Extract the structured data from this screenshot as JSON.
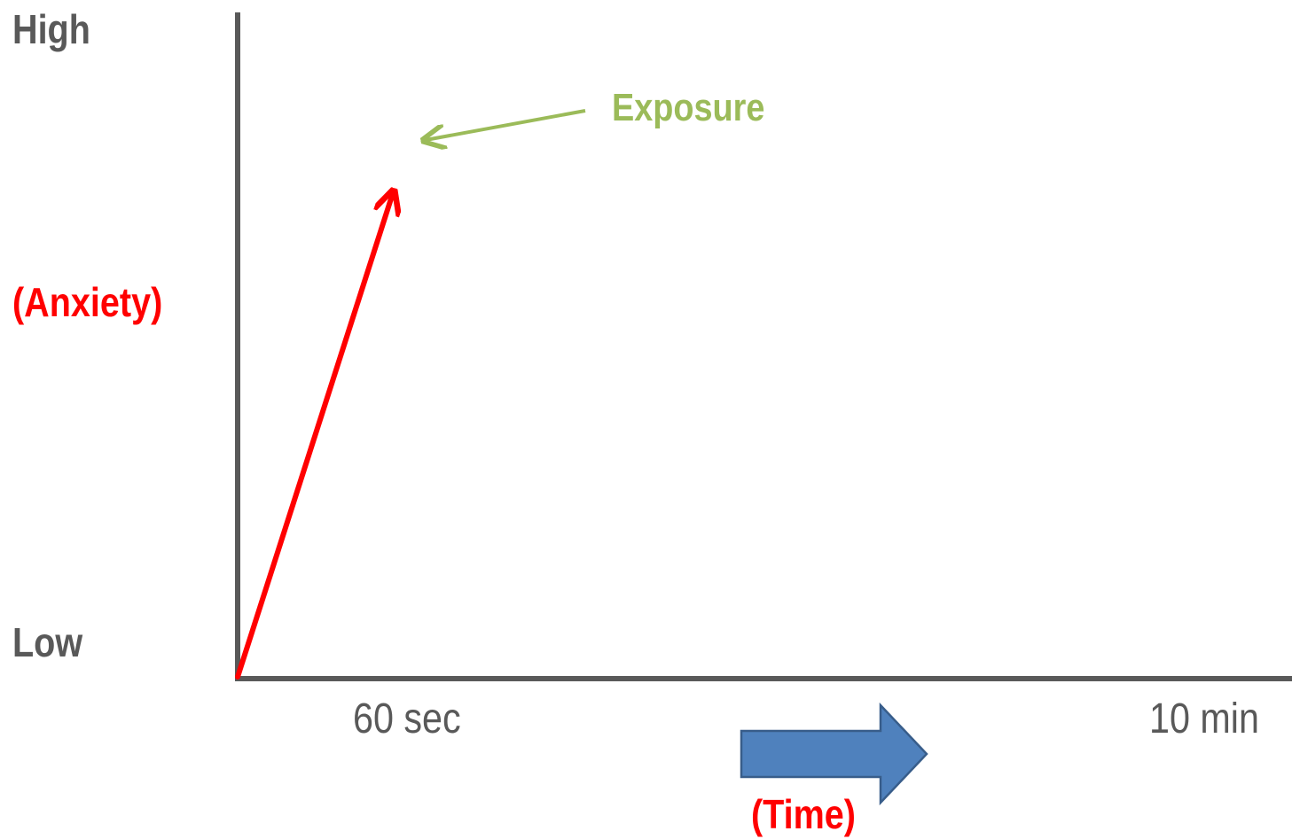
{
  "y_axis": {
    "high_label": "High",
    "low_label": "Low",
    "title": "(Anxiety)"
  },
  "x_axis": {
    "start_label": "60 sec",
    "end_label": "10 min",
    "title": "(Time)"
  },
  "callout": {
    "text": "Exposure"
  },
  "colors": {
    "axis": "#595959",
    "anxiety_arrow": "#ff0000",
    "callout": "#9bbb59",
    "time_arrow_fill": "#4f81bd",
    "time_arrow_stroke": "#385d8a"
  }
}
